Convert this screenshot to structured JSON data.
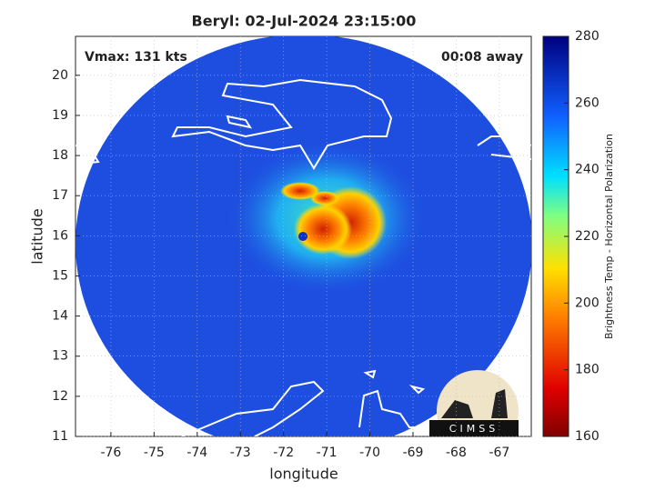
{
  "chart_data": {
    "type": "image",
    "title": "Beryl: 02-Jul-2024 23:15:00",
    "annotations": [
      "Vmax: 131 kts",
      "00:08 away"
    ],
    "xlabel": "longitude",
    "ylabel": "latitude",
    "xlim": [
      -76.82,
      -66.26
    ],
    "ylim": [
      11,
      20.97
    ],
    "xticks": [
      -76,
      -75,
      -74,
      -73,
      -72,
      -71,
      -70,
      -69,
      -68,
      -67
    ],
    "yticks": [
      11,
      12,
      13,
      14,
      15,
      16,
      17,
      18,
      19,
      20
    ],
    "grid": true,
    "colorbar": {
      "label": "Brightness Temp - Horizontal Polarization",
      "lim": [
        160,
        280
      ],
      "ticks": [
        160,
        180,
        200,
        220,
        240,
        260,
        280
      ]
    },
    "logo": "CIMSS"
  }
}
